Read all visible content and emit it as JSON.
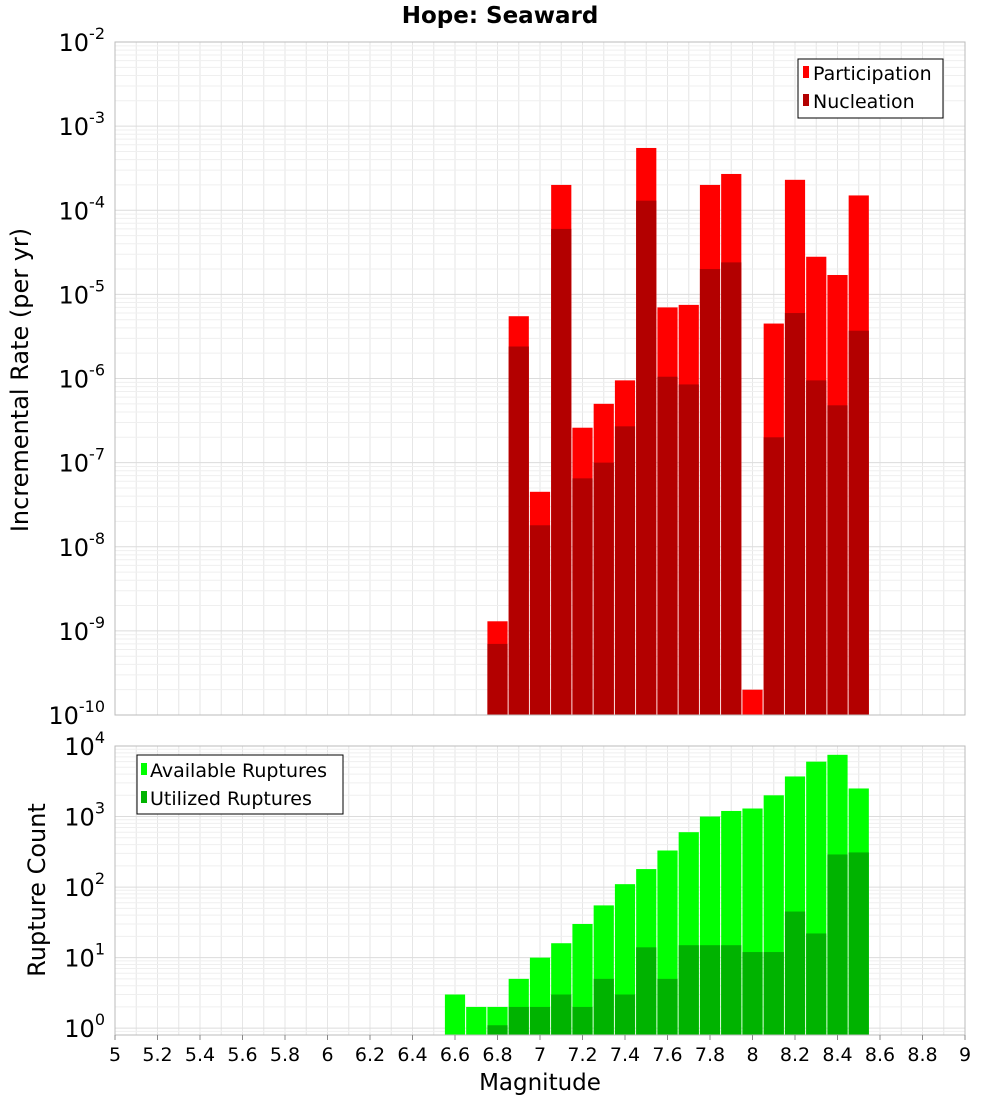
{
  "title": "Hope: Seaward",
  "xlabel": "Magnitude",
  "xlim": [
    5,
    9
  ],
  "x_ticks": [
    "5",
    "5.2",
    "5.4",
    "5.6",
    "5.8",
    "6",
    "6.2",
    "6.4",
    "6.6",
    "6.8",
    "7",
    "7.2",
    "7.4",
    "7.6",
    "7.8",
    "8",
    "8.2",
    "8.4",
    "8.6",
    "8.8",
    "9"
  ],
  "chart_data": [
    {
      "type": "bar",
      "ylabel": "Incremental Rate (per yr)",
      "yscale": "log",
      "ylim": [
        1e-10,
        0.01
      ],
      "y_tick_exponents": [
        "-10",
        "-9",
        "-8",
        "-7",
        "-6",
        "-5",
        "-4",
        "-3",
        "-2"
      ],
      "legend_position": "top-right",
      "grid": true,
      "x": [
        6.8,
        6.9,
        7.0,
        7.1,
        7.2,
        7.3,
        7.4,
        7.5,
        7.6,
        7.7,
        7.8,
        7.9,
        8.0,
        8.1,
        8.2,
        8.3,
        8.4,
        8.5
      ],
      "series": [
        {
          "name": "Participation",
          "color": "#ff0000",
          "values": [
            1.3e-09,
            5.5e-06,
            4.5e-08,
            0.0002,
            2.6e-07,
            5e-07,
            9.5e-07,
            0.00055,
            7e-06,
            7.5e-06,
            0.0002,
            0.00027,
            2e-10,
            4.5e-06,
            0.00023,
            2.8e-05,
            1.7e-05,
            0.00015
          ]
        },
        {
          "name": "Nucleation",
          "color": "#b30000",
          "values": [
            7e-10,
            2.4e-06,
            1.8e-08,
            6e-05,
            6.5e-08,
            1e-07,
            2.7e-07,
            0.00013,
            1.05e-06,
            8.5e-07,
            2e-05,
            2.4e-05,
            0,
            2e-07,
            6e-06,
            9.5e-07,
            4.8e-07,
            3.7e-06
          ]
        }
      ]
    },
    {
      "type": "bar",
      "ylabel": "Rupture Count",
      "yscale": "log",
      "ylim": [
        0.8,
        10000
      ],
      "y_tick_exponents": [
        "0",
        "1",
        "2",
        "3",
        "4"
      ],
      "legend_position": "top-left",
      "grid": true,
      "x": [
        6.6,
        6.7,
        6.8,
        6.9,
        7.0,
        7.1,
        7.2,
        7.3,
        7.4,
        7.5,
        7.6,
        7.7,
        7.8,
        7.9,
        8.0,
        8.1,
        8.2,
        8.3,
        8.4,
        8.5
      ],
      "series": [
        {
          "name": "Available Ruptures",
          "color": "#00ff00",
          "values": [
            3,
            2,
            2,
            5,
            10,
            16,
            30,
            55,
            110,
            180,
            330,
            600,
            1000,
            1200,
            1300,
            2000,
            3700,
            6000,
            7500,
            2500
          ]
        },
        {
          "name": "Utilized Ruptures",
          "color": "#00b300",
          "values": [
            0,
            0,
            1.1,
            2,
            2,
            3,
            2,
            5,
            3,
            14,
            5,
            15,
            15,
            15,
            12,
            12,
            45,
            22,
            290,
            310
          ]
        }
      ]
    }
  ]
}
